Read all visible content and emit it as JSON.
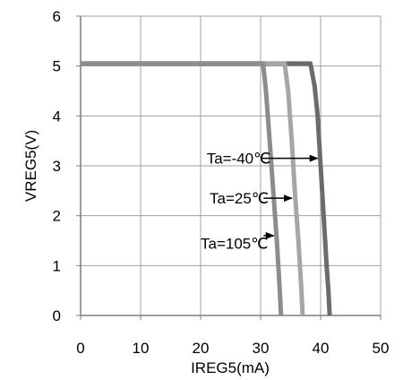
{
  "chart_data": {
    "type": "line",
    "title": "",
    "xlabel": "IREG5(mA)",
    "ylabel": "VREG5(V)",
    "xlim": [
      0,
      50
    ],
    "ylim": [
      0,
      6
    ],
    "x_ticks": [
      "0",
      "10",
      "20",
      "30",
      "40",
      "50"
    ],
    "y_ticks": [
      "0",
      "1",
      "2",
      "3",
      "4",
      "5",
      "6"
    ],
    "grid": true,
    "series": [
      {
        "label_key": "ta_m40",
        "color": "#6b6b6b",
        "points": [
          [
            0,
            5.05
          ],
          [
            38.3,
            5.05
          ],
          [
            39.0,
            4.6
          ],
          [
            39.5,
            4.0
          ],
          [
            40.0,
            3.0
          ],
          [
            40.5,
            2.0
          ],
          [
            41.0,
            1.0
          ],
          [
            41.3,
            0.5
          ],
          [
            41.5,
            0.0
          ]
        ]
      },
      {
        "label_key": "ta_25",
        "color": "#a6a6a6",
        "points": [
          [
            0,
            5.05
          ],
          [
            34.0,
            5.05
          ],
          [
            34.6,
            4.5
          ],
          [
            35.2,
            3.5
          ],
          [
            35.7,
            2.5
          ],
          [
            36.3,
            1.5
          ],
          [
            36.8,
            0.5
          ],
          [
            37.0,
            0.0
          ]
        ]
      },
      {
        "label_key": "ta_105",
        "color": "#8c8c8c",
        "points": [
          [
            0,
            5.05
          ],
          [
            30.4,
            5.05
          ],
          [
            30.9,
            4.5
          ],
          [
            31.5,
            3.5
          ],
          [
            32.1,
            2.5
          ],
          [
            32.7,
            1.5
          ],
          [
            33.2,
            0.5
          ],
          [
            33.4,
            0.0
          ]
        ]
      }
    ],
    "annotations": [
      {
        "key": "ta_m40",
        "text": "Ta=-40℃",
        "text_x": 21,
        "text_y": 3.15,
        "arrow_from_x": 30,
        "arrow_to_x": 39.5,
        "arrow_y": 3.15
      },
      {
        "key": "ta_25",
        "text": "Ta=25℃",
        "text_x": 21.5,
        "text_y": 2.35,
        "arrow_from_x": 30.5,
        "arrow_to_x": 35.2,
        "arrow_y": 2.35
      },
      {
        "key": "ta_105",
        "text": "Ta=105℃",
        "text_x": 20,
        "text_y": 1.45,
        "arrow_from_x": 30.5,
        "arrow_to_x": 32.2,
        "arrow_y": 1.6
      }
    ]
  }
}
